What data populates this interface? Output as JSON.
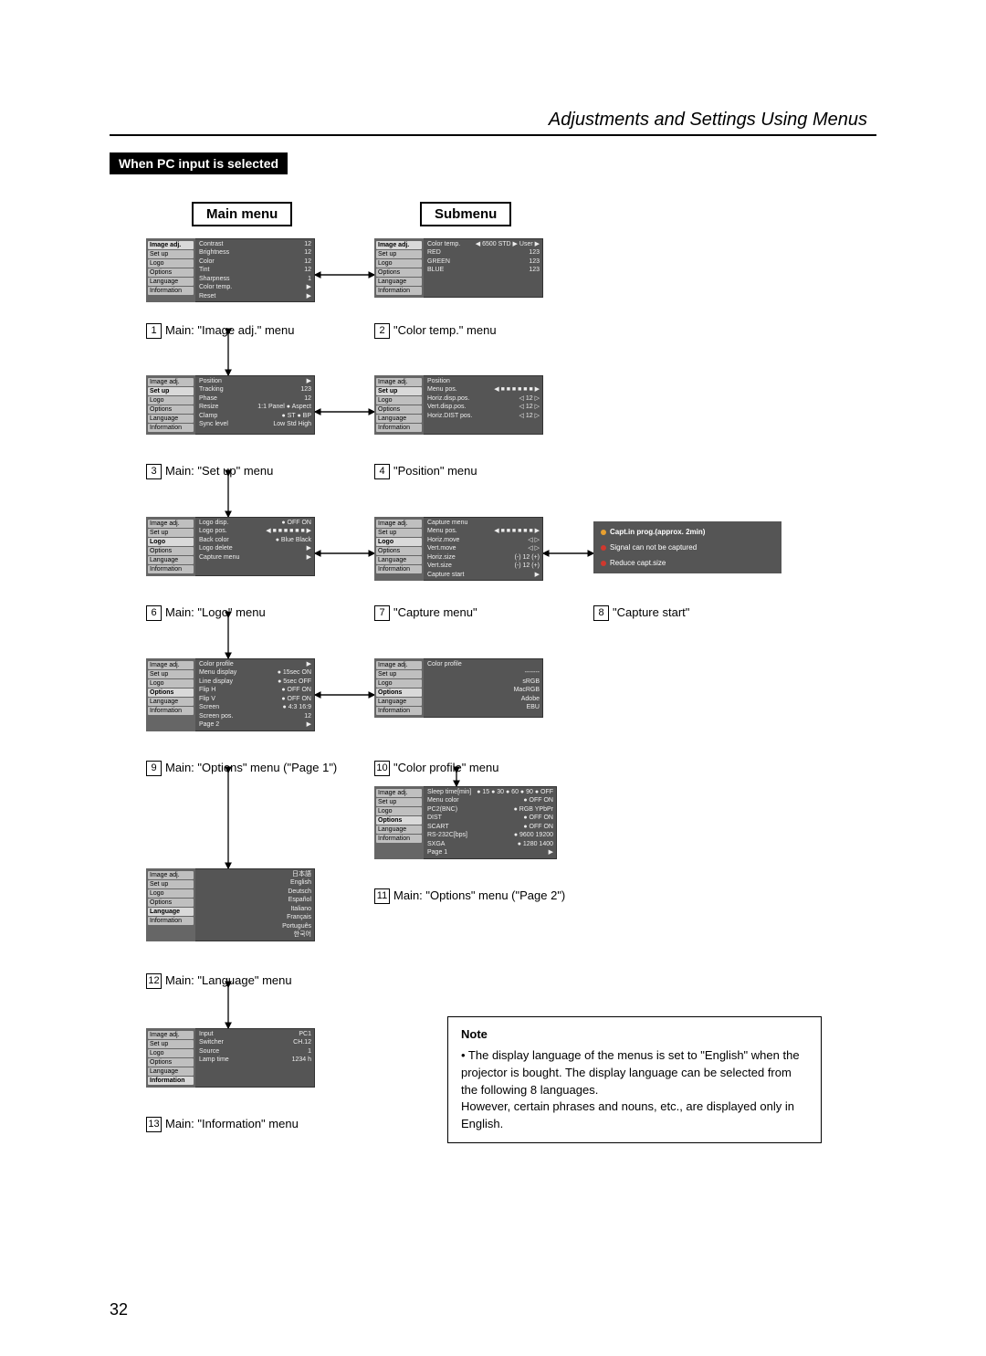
{
  "doc_title": "Adjustments and Settings Using Menus",
  "section_badge": "When PC input is selected",
  "col_main": "Main menu",
  "col_sub": "Submenu",
  "side_items": [
    "Image adj.",
    "Set up",
    "Logo",
    "Options",
    "Language",
    "Information"
  ],
  "menus": {
    "m1": {
      "sel": 0,
      "rows": [
        [
          "Contrast",
          "12"
        ],
        [
          "Brightness",
          "12"
        ],
        [
          "Color",
          "12"
        ],
        [
          "Tint",
          "12"
        ],
        [
          "Sharpness",
          "1"
        ],
        [
          "Color temp.",
          "▶"
        ],
        [
          "Reset",
          "▶"
        ]
      ]
    },
    "m2": {
      "sel": 0,
      "rows": [
        [
          "Color temp.",
          "◀ 6500  STD ▶ User ▶"
        ],
        [
          "RED",
          "123"
        ],
        [
          "GREEN",
          "123"
        ],
        [
          "BLUE",
          "123"
        ]
      ]
    },
    "m3": {
      "sel": 1,
      "rows": [
        [
          "Position",
          "▶"
        ],
        [
          "Tracking",
          "123"
        ],
        [
          "Phase",
          "12"
        ],
        [
          "Resize",
          "1:1  Panel ● Aspect"
        ],
        [
          "Clamp",
          "● ST  ● BP"
        ],
        [
          "Sync level",
          "Low  Std  High"
        ]
      ]
    },
    "m4": {
      "sel": 1,
      "rows": [
        [
          "Position",
          ""
        ],
        [
          "Menu pos.",
          "◀ ■ ■ ■ ■ ■ ■ ▶"
        ],
        [
          "Horiz.disp.pos.",
          "◁  12  ▷"
        ],
        [
          "Vert.disp.pos.",
          "◁  12  ▷"
        ],
        [
          "Horiz.DIST pos.",
          "◁  12  ▷"
        ]
      ]
    },
    "m6": {
      "sel": 2,
      "rows": [
        [
          "Logo disp.",
          "● OFF  ON"
        ],
        [
          "Logo pos.",
          "◀ ■ ■ ■ ■ ■ ■ ▶"
        ],
        [
          "Back color",
          "● Blue   Black"
        ],
        [
          "Logo delete",
          "▶"
        ],
        [
          "Capture menu",
          "▶"
        ]
      ]
    },
    "m7": {
      "sel": 2,
      "rows": [
        [
          "Capture menu",
          ""
        ],
        [
          "Menu pos.",
          "◀ ■ ■ ■ ■ ■ ■ ▶"
        ],
        [
          "Horiz.move",
          "◁   ▷"
        ],
        [
          "Vert.move",
          "◁   ▷"
        ],
        [
          "Horiz.size",
          "(-)  12  (+)"
        ],
        [
          "Vert.size",
          "(-)  12  (+)"
        ],
        [
          "Capture start",
          "▶"
        ]
      ]
    },
    "m9": {
      "sel": 3,
      "rows": [
        [
          "Color profile",
          "▶"
        ],
        [
          "Menu display",
          "● 15sec  ON"
        ],
        [
          "Line display",
          "● 5sec  OFF"
        ],
        [
          "Flip H",
          "● OFF  ON"
        ],
        [
          "Flip V",
          "● OFF  ON"
        ],
        [
          "Screen",
          "● 4:3   16:9"
        ],
        [
          "Screen pos.",
          "12"
        ],
        [
          "Page 2",
          "▶"
        ]
      ]
    },
    "m10": {
      "sel": 3,
      "rows": [
        [
          "Color profile",
          ""
        ],
        [
          "",
          "-------"
        ],
        [
          "",
          "sRGB"
        ],
        [
          "",
          "MacRGB"
        ],
        [
          "",
          "Adobe"
        ],
        [
          "",
          "EBU"
        ]
      ]
    },
    "m11": {
      "sel": 3,
      "rows": [
        [
          "Sleep time[min]",
          "● 15 ● 30 ● 60 ● 90 ● OFF"
        ],
        [
          "Menu color",
          "● OFF   ON"
        ],
        [
          "PC2(BNC)",
          "● RGB   YPbPr"
        ],
        [
          "DIST",
          "● OFF   ON"
        ],
        [
          "SCART",
          "● OFF   ON"
        ],
        [
          "RS-232C[bps]",
          "● 9600   19200"
        ],
        [
          "SXGA",
          "● 1280  1400"
        ],
        [
          "Page 1",
          "▶"
        ]
      ]
    },
    "m12": {
      "sel": 4,
      "rows": [
        [
          "",
          "日本語"
        ],
        [
          "",
          "English"
        ],
        [
          "",
          "Deutsch"
        ],
        [
          "",
          "Español"
        ],
        [
          "",
          "Italiano"
        ],
        [
          "",
          "Français"
        ],
        [
          "",
          "Português"
        ],
        [
          "",
          "한국어"
        ]
      ]
    },
    "m13": {
      "sel": 5,
      "rows": [
        [
          "Input",
          "PC1"
        ],
        [
          "Switcher",
          "CH.12"
        ],
        [
          "Source",
          "1"
        ],
        [
          "",
          ""
        ],
        [
          "",
          ""
        ],
        [
          "Lamp time",
          "1234 h"
        ]
      ]
    }
  },
  "info_box": {
    "l1": "Capt.in prog.(approx. 2min)",
    "l2": "Signal can not be captured",
    "l3": "Reduce capt.size"
  },
  "captions": {
    "c1": "Main: \"Image adj.\" menu",
    "c2": "\"Color temp.\" menu",
    "c3": "Main: \"Set up\" menu",
    "c4": "\"Position\" menu",
    "c6": "Main: \"Logo\" menu",
    "c7": "\"Capture menu\"",
    "c8": "\"Capture start\"",
    "c9": "Main: \"Options\" menu (\"Page 1\")",
    "c10": "\"Color profile\" menu",
    "c11": "Main: \"Options\" menu (\"Page 2\")",
    "c12": "Main: \"Language\" menu",
    "c13": "Main: \"Information\" menu"
  },
  "note_title": "Note",
  "note_body": "• The display language of the menus is set to \"English\" when the projector is bought. The display language can be selected from the following 8 languages.\nHowever, certain phrases and nouns, etc., are displayed only in English.",
  "page_number": "32",
  "colors": {
    "menu_bg": "#555",
    "menu_side": "#666",
    "side_item": "#bfbfbf",
    "badge_bg": "#000"
  }
}
